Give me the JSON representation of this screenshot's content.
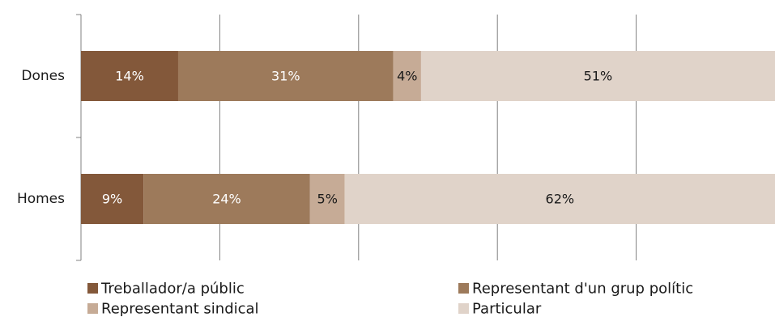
{
  "chart_data": {
    "type": "bar",
    "orientation": "horizontal",
    "stacked": true,
    "percent_stacked": true,
    "categories": [
      "Dones",
      "Homes"
    ],
    "series": [
      {
        "name": "Treballador/a públic",
        "values": [
          14,
          9
        ],
        "labels": [
          "14%",
          "9%"
        ],
        "color": "#83583a",
        "label_color": "#ffffff"
      },
      {
        "name": "Representant d'un grup polític",
        "values": [
          31,
          24
        ],
        "labels": [
          "31%",
          "24%"
        ],
        "color": "#9d7a5b",
        "label_color": "#ffffff"
      },
      {
        "name": "Representant sindical",
        "values": [
          4,
          5
        ],
        "labels": [
          "4%",
          "5%"
        ],
        "color": "#c6ab96",
        "label_color": "#1a1a1a"
      },
      {
        "name": "Particular",
        "values": [
          51,
          62
        ],
        "labels": [
          "51%",
          "62%"
        ],
        "color": "#e0d3c9",
        "label_color": "#1a1a1a"
      }
    ],
    "xlim": [
      0,
      100
    ],
    "grid": {
      "vertical": true,
      "color": "#808080"
    },
    "legend_position": "bottom"
  }
}
